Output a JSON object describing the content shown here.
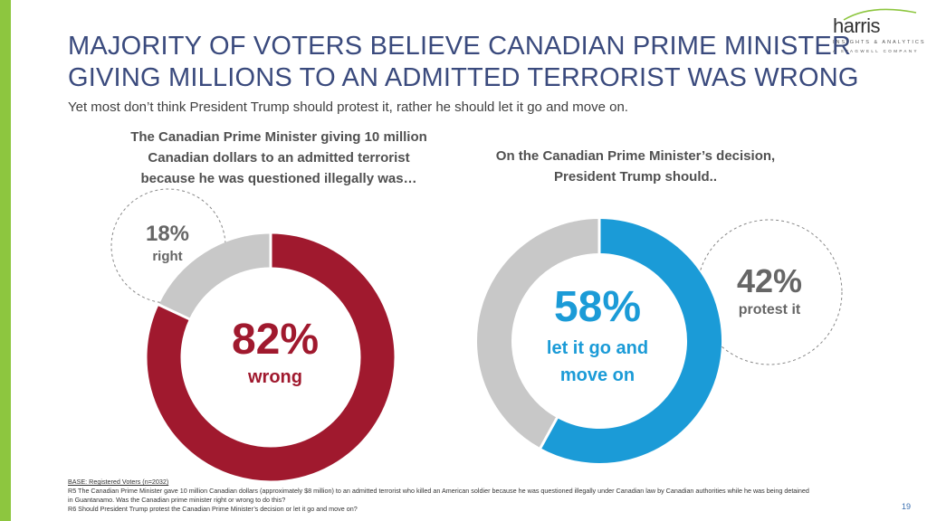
{
  "title_lines": [
    "MAJORITY OF VOTERS BELIEVE CANADIAN PRIME MINISTER",
    "GIVING MILLIONS TO AN ADMITTED TERRORIST WAS WRONG"
  ],
  "subtitle": "Yet most don’t think President Trump should protest it, rather he should let it go and move on.",
  "logo": {
    "word": "harris",
    "line1": "INSIGHTS & ANALYTICS",
    "line2": "A STAGWELL COMPANY"
  },
  "colors": {
    "accent_bar": "#8dc63f",
    "wrong": "#a0192e",
    "right_grey": "#c8c8c8",
    "let_go": "#1b9bd7",
    "protest_grey": "#c8c8c8",
    "title": "#3a4a7d"
  },
  "chart_data": [
    {
      "type": "pie",
      "donut": true,
      "question_lines": [
        "The Canadian Prime Minister giving 10 million",
        "Canadian dollars to an admitted terrorist",
        "because he was questioned illegally was…"
      ],
      "slices": [
        {
          "label": "wrong",
          "value": 82,
          "display": "82%",
          "color": "#a0192e"
        },
        {
          "label": "right",
          "value": 18,
          "display": "18%",
          "color": "#c8c8c8"
        }
      ]
    },
    {
      "type": "pie",
      "donut": true,
      "question_lines": [
        "On the Canadian Prime Minister’s decision,",
        "President Trump should.."
      ],
      "slices": [
        {
          "label_lines": [
            "let it go and",
            "move on"
          ],
          "value": 58,
          "display": "58%",
          "color": "#1b9bd7"
        },
        {
          "label": "protest it",
          "value": 42,
          "display": "42%",
          "color": "#c8c8c8"
        }
      ]
    }
  ],
  "footnote": {
    "base": "BASE: Registered Voters (n=2032)",
    "lines": [
      "R5 The Canadian Prime Minister gave 10 million Canadian dollars (approximately $8 million) to an admitted terrorist who killed an American soldier because he was questioned illegally under Canadian law by Canadian authorities while he was being detained",
      "in Guantanamo. Was the Canadian prime minister right or wrong to do this?",
      "R6 Should President Trump protest the Canadian Prime Minister’s decision or let it go and move on?"
    ]
  },
  "page_number": "19"
}
